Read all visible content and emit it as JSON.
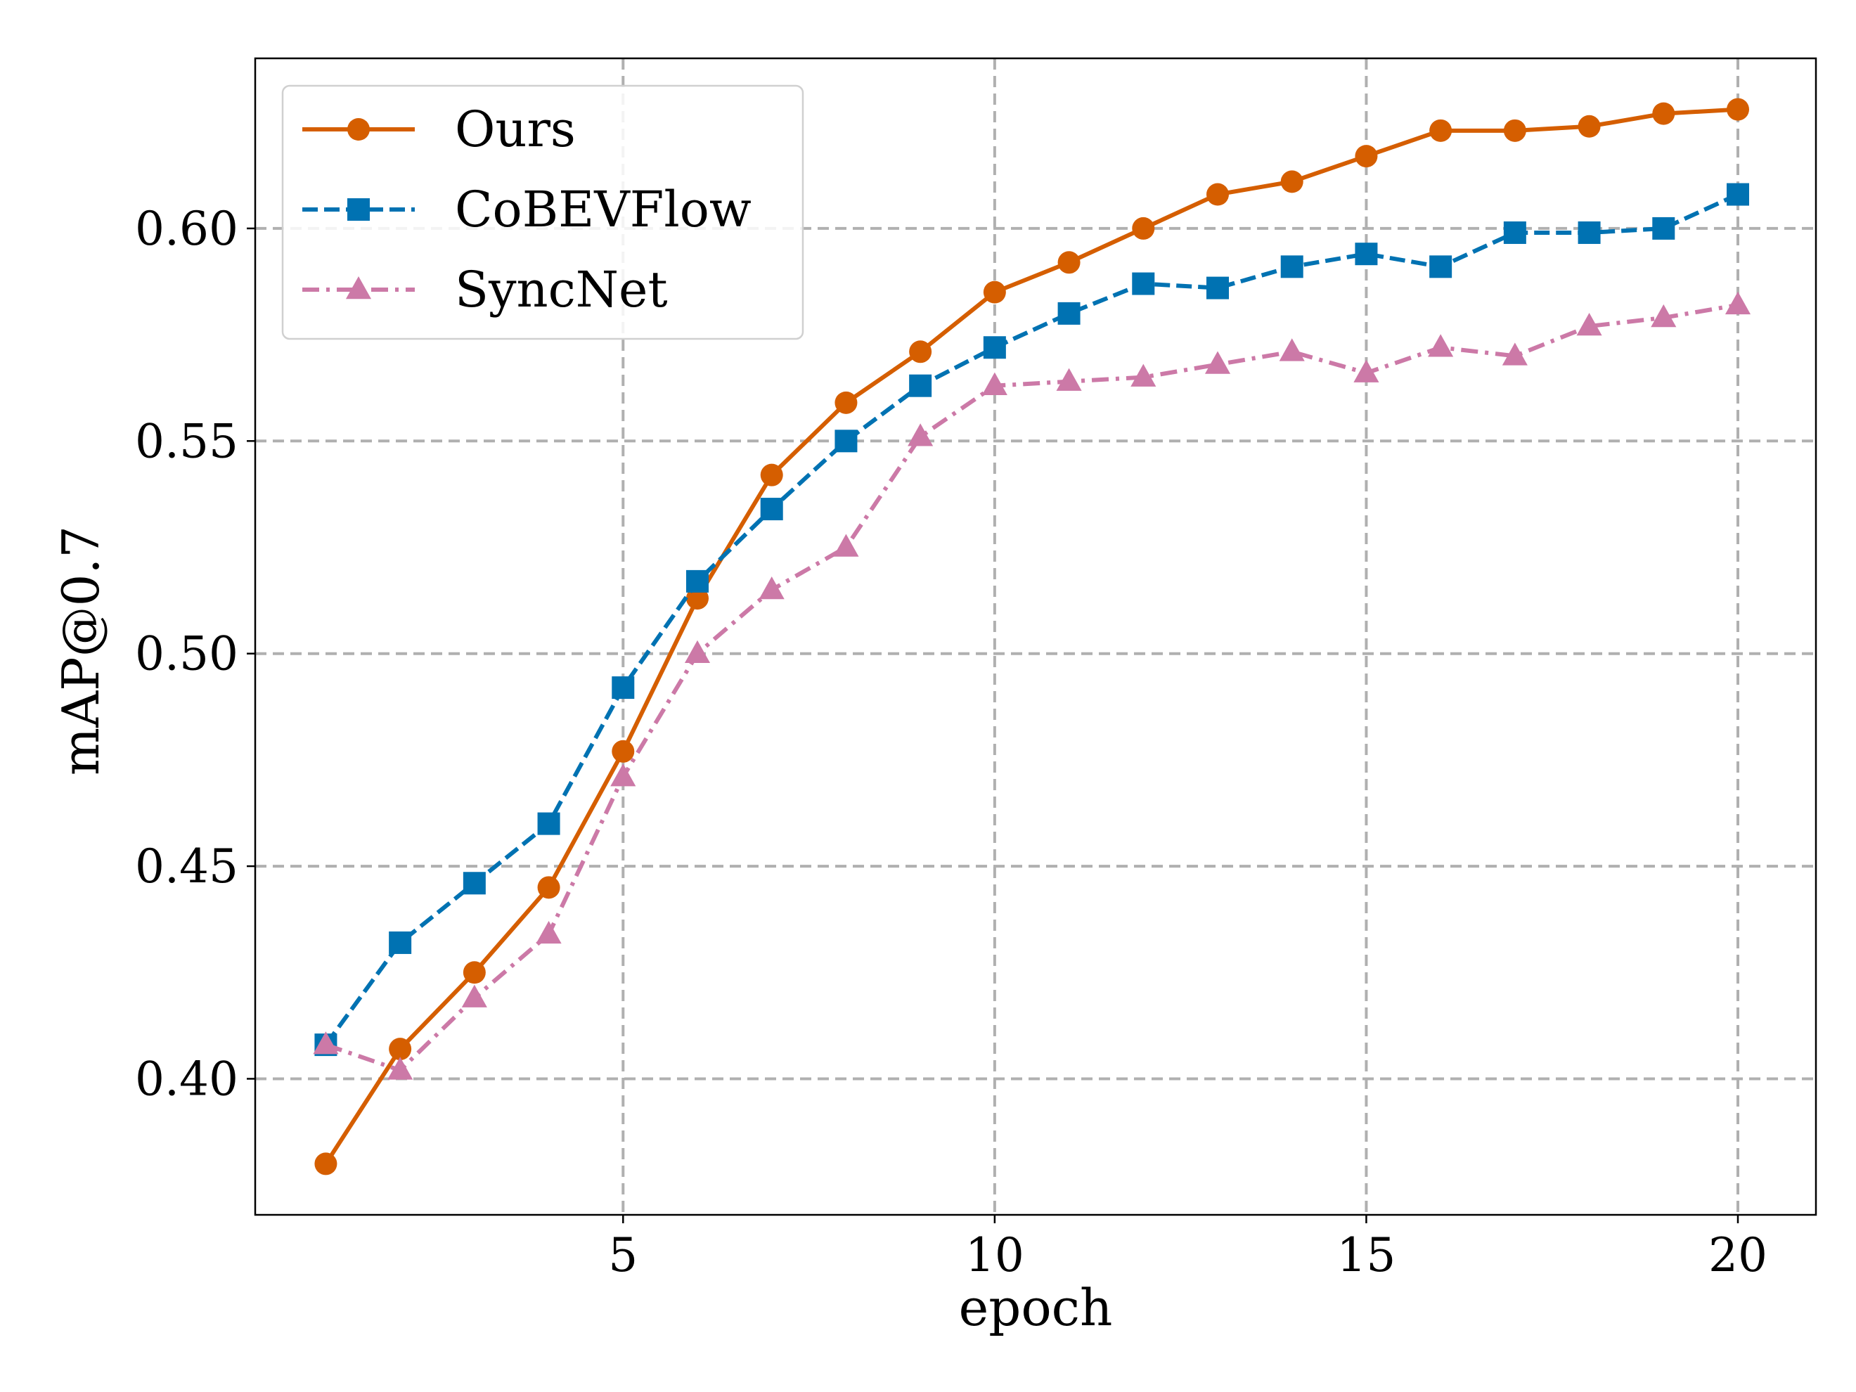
{
  "chart_data": {
    "type": "line",
    "title": "",
    "xlabel": "epoch",
    "ylabel": "mAP@0.7",
    "xlim": [
      0.05,
      21.05
    ],
    "ylim": [
      0.368,
      0.64
    ],
    "xticks": [
      5,
      10,
      15,
      20
    ],
    "xtick_labels": [
      "5",
      "10",
      "15",
      "20"
    ],
    "yticks": [
      0.4,
      0.45,
      0.5,
      0.55,
      0.6
    ],
    "ytick_labels": [
      "0.40",
      "0.45",
      "0.50",
      "0.55",
      "0.60"
    ],
    "grid": true,
    "legend_position": "top-left",
    "x": [
      1,
      2,
      3,
      4,
      5,
      6,
      7,
      8,
      9,
      10,
      11,
      12,
      13,
      14,
      15,
      16,
      17,
      18,
      19,
      20
    ],
    "series": [
      {
        "name": "Ours",
        "color": "#D55E00",
        "line_style": "solid",
        "marker": "circle",
        "values": [
          0.38,
          0.407,
          0.425,
          0.445,
          0.477,
          0.513,
          0.542,
          0.559,
          0.571,
          0.585,
          0.592,
          0.6,
          0.608,
          0.611,
          0.617,
          0.623,
          0.623,
          0.624,
          0.627,
          0.628
        ]
      },
      {
        "name": "CoBEVFlow",
        "color": "#0072B2",
        "line_style": "dashed",
        "marker": "square",
        "values": [
          0.408,
          0.432,
          0.446,
          0.46,
          0.492,
          0.517,
          0.534,
          0.55,
          0.563,
          0.572,
          0.58,
          0.587,
          0.586,
          0.591,
          0.594,
          0.591,
          0.599,
          0.599,
          0.6,
          0.608
        ]
      },
      {
        "name": "SyncNet",
        "color": "#CC79A7",
        "line_style": "dashdot",
        "marker": "triangle",
        "values": [
          0.408,
          0.402,
          0.419,
          0.434,
          0.471,
          0.5,
          0.515,
          0.525,
          0.551,
          0.563,
          0.564,
          0.565,
          0.568,
          0.571,
          0.566,
          0.572,
          0.57,
          0.577,
          0.579,
          0.582
        ]
      }
    ]
  }
}
